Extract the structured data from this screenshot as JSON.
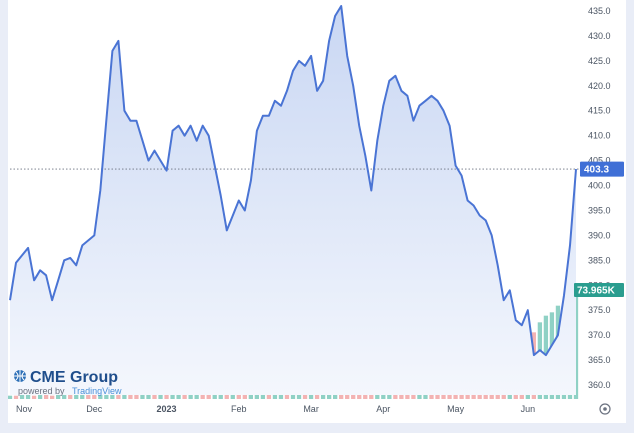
{
  "chart_data": {
    "type": "line",
    "title": "",
    "xlabel": "",
    "ylabel": "",
    "ylim": [
      358,
      436
    ],
    "y_ticks": [
      "435.0",
      "430.0",
      "425.0",
      "420.0",
      "415.0",
      "410.0",
      "405.0",
      "400.0",
      "395.0",
      "390.0",
      "385.0",
      "380.0",
      "375.0",
      "370.0",
      "365.0",
      "360.0"
    ],
    "x_ticks": [
      "Nov",
      "Dec",
      "2023",
      "Feb",
      "Mar",
      "Apr",
      "May",
      "Jun"
    ],
    "last_price_label": "403.3",
    "last_price": 403.3,
    "volume_label": "73.965K",
    "grid": false,
    "series": [
      {
        "values": [
          377,
          384.5,
          386,
          387.5,
          381,
          383,
          382,
          377,
          381,
          385,
          385.5,
          384,
          388,
          389,
          390,
          399,
          413,
          427,
          429,
          415,
          413,
          413,
          409,
          405,
          407,
          405,
          403,
          411,
          412,
          410,
          412,
          409,
          412,
          410,
          404,
          398,
          391,
          394,
          397,
          395,
          401,
          411,
          414,
          414,
          417,
          416,
          419,
          423,
          425,
          424,
          426,
          419,
          421,
          429,
          434,
          436,
          426,
          420,
          412,
          406,
          399,
          409,
          416,
          421,
          422,
          419,
          418,
          413,
          416,
          417,
          418,
          417,
          415,
          412,
          404,
          402,
          397,
          396,
          394,
          393,
          390,
          384,
          377,
          379,
          373,
          372,
          375,
          366,
          367,
          366,
          368,
          370,
          378,
          388,
          403.3
        ]
      }
    ],
    "volume": [
      0.5,
      0.5,
      0.6,
      0.6,
      0.5,
      0.7,
      0.6,
      0.5,
      0.6,
      0.7,
      0.6,
      0.7,
      0.8,
      0.8,
      0.7,
      0.8,
      1.0,
      1.1,
      1.0,
      1.2,
      1.1,
      1.0,
      1.1,
      1.2,
      1.3,
      1.2,
      1.1,
      1.3,
      1.4,
      1.3,
      1.5,
      1.7,
      1.8,
      1.7,
      2.0,
      2.2,
      2.1,
      2.4,
      2.3,
      2.0,
      2.8,
      2.5,
      3.0,
      3.3,
      3.1,
      3.6,
      3.2,
      3.8,
      4.2,
      3.9,
      4.4,
      4.0,
      4.8,
      4.5,
      5.0,
      4.7,
      5.4,
      5.0,
      5.6,
      5.2,
      6.0,
      5.5,
      7.2,
      5.8,
      6.3,
      5.9,
      6.6,
      6.2,
      7.0,
      6.5,
      7.5,
      6.8,
      7.0,
      6.4,
      7.8,
      7.2,
      8.0,
      7.6,
      8.5,
      9.0,
      9.5,
      8.8,
      10.0,
      9.2,
      10.5,
      9.6,
      11.0,
      10.0,
      11.5,
      12.5,
      13.0,
      14.0,
      13.5,
      15.0,
      16.5
    ],
    "volume_is_up": [
      1,
      0,
      1,
      1,
      0,
      1,
      0,
      0,
      1,
      1,
      0,
      1,
      1,
      0,
      0,
      1,
      1,
      1,
      0,
      1,
      0,
      0,
      1,
      1,
      0,
      1,
      0,
      1,
      1,
      0,
      1,
      1,
      0,
      0,
      1,
      1,
      0,
      1,
      0,
      0,
      1,
      1,
      1,
      0,
      1,
      1,
      0,
      1,
      1,
      0,
      1,
      0,
      1,
      1,
      1,
      0,
      0,
      0,
      0,
      0,
      0,
      1,
      1,
      1,
      0,
      0,
      0,
      0,
      1,
      1,
      0,
      0,
      0,
      0,
      0,
      0,
      0,
      0,
      0,
      0,
      0,
      0,
      0,
      1,
      0,
      0,
      1,
      0,
      1,
      1,
      1,
      1,
      1,
      1,
      1
    ]
  },
  "watermark": {
    "brand": "CME Group",
    "powered_by": "powered by",
    "vendor": "TradingView"
  },
  "colors": {
    "line": "#4a74d4",
    "area_top": "#c9d7f3",
    "area_bottom": "#f4f7fd",
    "price_tag": "#3f6fd6",
    "volume_tag": "#2a9d8f",
    "vol_up": "#69c2b2",
    "vol_down": "#ef9a9a",
    "axis_text": "#4b5563"
  },
  "icons": {
    "settings": "gear-icon"
  }
}
